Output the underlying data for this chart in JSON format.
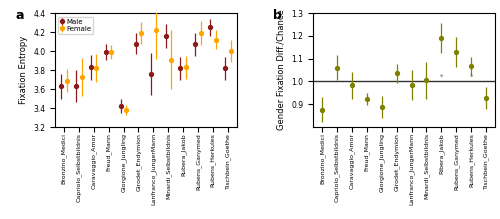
{
  "panel_a": {
    "categories": [
      "Bronzino_Medici",
      "Capriolo_Selbstbildnis",
      "Caravaggio_Amor",
      "Freud_Mann",
      "Giorgione_Jungling",
      "Girodet_Endymion",
      "Lanfranco_JungerMann",
      "Minardi_Selbstbildnis",
      "Rubera_Jakob",
      "Rubens_Ganymed",
      "Rubens_Herkules",
      "Tischbein_Goethe"
    ],
    "male_mean": [
      3.63,
      3.63,
      3.83,
      3.99,
      3.42,
      4.08,
      3.76,
      4.16,
      3.82,
      4.07,
      4.25,
      3.82
    ],
    "male_err_lo": [
      0.13,
      0.17,
      0.13,
      0.08,
      0.07,
      0.11,
      0.22,
      0.13,
      0.12,
      0.12,
      0.09,
      0.12
    ],
    "male_err_hi": [
      0.13,
      0.17,
      0.13,
      0.08,
      0.07,
      0.11,
      0.22,
      0.13,
      0.12,
      0.12,
      0.09,
      0.12
    ],
    "female_mean": [
      3.69,
      3.73,
      3.82,
      3.99,
      3.38,
      4.19,
      4.22,
      3.91,
      3.83,
      4.19,
      4.12,
      4.0
    ],
    "female_err_lo": [
      0.12,
      0.2,
      0.15,
      0.07,
      0.05,
      0.12,
      0.3,
      0.31,
      0.12,
      0.13,
      0.1,
      0.12
    ],
    "female_err_hi": [
      0.12,
      0.2,
      0.15,
      0.07,
      0.05,
      0.12,
      0.3,
      0.31,
      0.12,
      0.13,
      0.1,
      0.12
    ],
    "male_color": "#8B1A1A",
    "female_color": "#FFA500",
    "ylabel": "Fixation Entropy",
    "ylim": [
      3.2,
      4.4
    ],
    "yticks": [
      3.2,
      3.4,
      3.6,
      3.8,
      4.0,
      4.2,
      4.4
    ],
    "label": "a"
  },
  "panel_b": {
    "categories": [
      "Bronzino_Medici",
      "Capriolo_Selbstbildnis",
      "Caravaggio_Amor",
      "Freud_Mann",
      "Giorgione_Jungling",
      "Girodet_Endymion",
      "Lanfranco_JungerMann",
      "Minardi_Selbstbildnis",
      "Ribera_Jakob",
      "Rubens_Ganymed",
      "Rubens_Herkules",
      "Tischbein_Goethe"
    ],
    "mean": [
      0.875,
      1.06,
      0.983,
      0.922,
      0.888,
      1.035,
      0.985,
      1.005,
      1.19,
      1.13,
      1.067,
      0.928
    ],
    "err_lo": [
      0.055,
      0.055,
      0.06,
      0.027,
      0.047,
      0.04,
      0.065,
      0.08,
      0.065,
      0.065,
      0.04,
      0.048
    ],
    "err_hi": [
      0.055,
      0.055,
      0.06,
      0.027,
      0.047,
      0.04,
      0.065,
      0.08,
      0.065,
      0.065,
      0.04,
      0.048
    ],
    "color": "#808000",
    "hline": 1.0,
    "ylabel": "Gender Fixation Diff./Chance",
    "ylim": [
      0.8,
      1.3
    ],
    "yticks": [
      0.9,
      1.0,
      1.1,
      1.2,
      1.3
    ],
    "star_indices": [
      8,
      10
    ],
    "label": "b"
  }
}
